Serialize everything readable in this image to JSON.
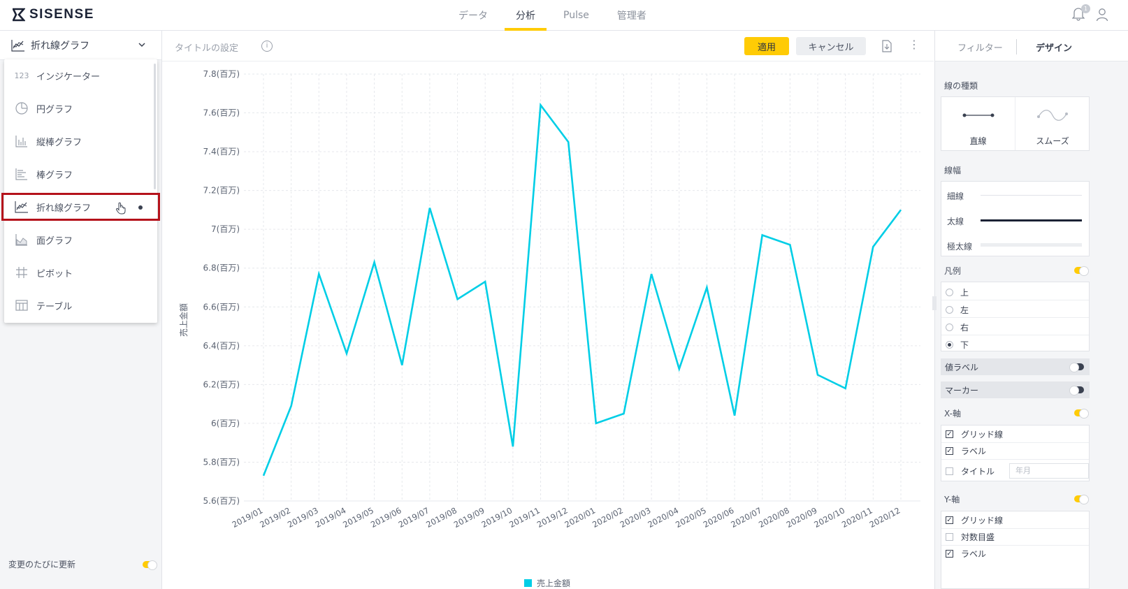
{
  "header": {
    "logo_text": "SISENSE",
    "nav": [
      {
        "label": "データ",
        "active": false
      },
      {
        "label": "分析",
        "active": true
      },
      {
        "label": "Pulse",
        "active": false
      },
      {
        "label": "管理者",
        "active": false
      }
    ],
    "notification_count": "1",
    "accent_color": "#ffcb05"
  },
  "left": {
    "selected_type": "折れ線グラフ",
    "menu": [
      {
        "label": "インジケーター",
        "icon": "indicator-123-icon",
        "icon_text": "123"
      },
      {
        "label": "円グラフ",
        "icon": "pie-chart-icon"
      },
      {
        "label": "縦棒グラフ",
        "icon": "column-chart-icon"
      },
      {
        "label": "棒グラフ",
        "icon": "bar-chart-icon"
      },
      {
        "label": "折れ線グラフ",
        "icon": "line-chart-icon",
        "selected": true
      },
      {
        "label": "面グラフ",
        "icon": "area-chart-icon"
      },
      {
        "label": "ピボット",
        "icon": "pivot-icon"
      },
      {
        "label": "テーブル",
        "icon": "table-icon"
      }
    ],
    "auto_update_label": "変更のたびに更新",
    "auto_update_on": true
  },
  "toolbar": {
    "title_placeholder": "タイトルの設定",
    "apply_label": "適用",
    "cancel_label": "キャンセル"
  },
  "chart_data": {
    "type": "line",
    "ylabel": "売上金額",
    "yticks": [
      "7.8(百万)",
      "7.6(百万)",
      "7.4(百万)",
      "7.2(百万)",
      "7(百万)",
      "6.8(百万)",
      "6.6(百万)",
      "6.4(百万)",
      "6.2(百万)",
      "6(百万)",
      "5.8(百万)",
      "5.6(百万)"
    ],
    "ylim": [
      5.6,
      7.8
    ],
    "categories": [
      "2019/01",
      "2019/02",
      "2019/03",
      "2019/04",
      "2019/05",
      "2019/06",
      "2019/07",
      "2019/08",
      "2019/09",
      "2019/10",
      "2019/11",
      "2019/12",
      "2020/01",
      "2020/02",
      "2020/03",
      "2020/04",
      "2020/05",
      "2020/06",
      "2020/07",
      "2020/08",
      "2020/09",
      "2020/10",
      "2020/11",
      "2020/12"
    ],
    "series": [
      {
        "name": "売上金額",
        "color": "#00cee6",
        "values": [
          5.73,
          6.09,
          6.77,
          6.36,
          6.83,
          6.3,
          7.11,
          6.64,
          6.73,
          5.88,
          7.64,
          7.45,
          6.0,
          6.05,
          6.77,
          6.28,
          6.7,
          6.04,
          6.97,
          6.92,
          6.25,
          6.18,
          6.91,
          7.1
        ]
      }
    ],
    "grid": true,
    "legend": "bottom"
  },
  "design": {
    "tabs": [
      {
        "label": "フィルター",
        "active": false
      },
      {
        "label": "デザイン",
        "active": true
      }
    ],
    "line_type_label": "線の種類",
    "line_types": [
      {
        "label": "直線"
      },
      {
        "label": "スムーズ"
      }
    ],
    "line_width_label": "線幅",
    "line_widths": [
      {
        "label": "細線"
      },
      {
        "label": "太線",
        "selected": true
      },
      {
        "label": "極太線"
      }
    ],
    "legend_label": "凡例",
    "legend_on": true,
    "legend_positions": [
      {
        "label": "上"
      },
      {
        "label": "左"
      },
      {
        "label": "右"
      },
      {
        "label": "下",
        "selected": true
      }
    ],
    "value_labels_label": "値ラベル",
    "value_labels_on": false,
    "markers_label": "マーカー",
    "markers_on": false,
    "x_axis": {
      "label": "X-軸",
      "on": true,
      "options": [
        {
          "label": "グリッド線",
          "checked": true
        },
        {
          "label": "ラベル",
          "checked": true
        },
        {
          "label": "タイトル",
          "checked": false
        }
      ],
      "title_placeholder": "年月"
    },
    "y_axis": {
      "label": "Y-軸",
      "on": true,
      "options": [
        {
          "label": "グリッド線",
          "checked": true
        },
        {
          "label": "対数目盛",
          "checked": false
        },
        {
          "label": "ラベル",
          "checked": true
        }
      ]
    }
  }
}
